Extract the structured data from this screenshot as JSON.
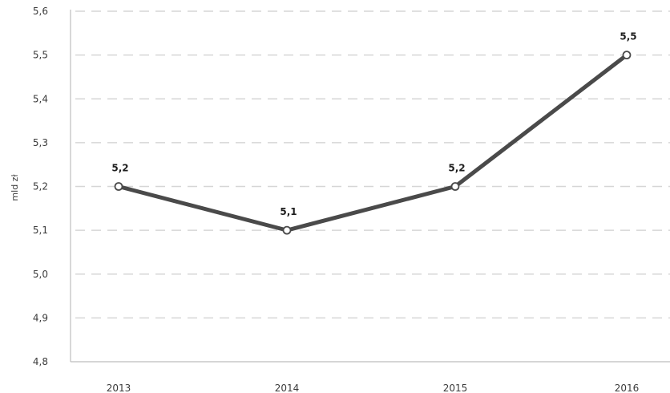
{
  "chart_data": {
    "type": "line",
    "title": "",
    "xlabel": "",
    "ylabel": "mld zł",
    "categories": [
      "2013",
      "2014",
      "2015",
      "2016"
    ],
    "series": [
      {
        "values": [
          5.2,
          5.1,
          5.2,
          5.5
        ],
        "data_labels": [
          "5,2",
          "5,1",
          "5,2",
          "5,5"
        ],
        "color": "#4a4a4a"
      }
    ],
    "ylim": [
      4.8,
      5.6
    ],
    "y_ticks": [
      4.8,
      4.9,
      5.0,
      5.1,
      5.2,
      5.3,
      5.4,
      5.5,
      5.6
    ],
    "y_tick_labels": [
      "4,8",
      "4,9",
      "5,0",
      "5,1",
      "5,2",
      "5,3",
      "5,4",
      "5,5",
      "5,6"
    ],
    "grid": true,
    "grid_style": "dashed",
    "legend": "none",
    "colors": {
      "line": "#4a4a4a",
      "grid": "#d6d6d6",
      "axis": "#bdbdbd",
      "marker_fill": "#ffffff"
    }
  }
}
